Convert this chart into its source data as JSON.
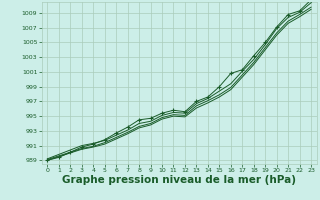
{
  "bg_color": "#cceee8",
  "grid_color": "#aaccbb",
  "line_color": "#1a5c2a",
  "xlabel": "Graphe pression niveau de la mer (hPa)",
  "xlabel_fontsize": 7.5,
  "xlim": [
    -0.5,
    23.5
  ],
  "ylim": [
    988.5,
    1010.5
  ],
  "yticks": [
    989,
    991,
    993,
    995,
    997,
    999,
    1001,
    1003,
    1005,
    1007,
    1009
  ],
  "xticks": [
    0,
    1,
    2,
    3,
    4,
    5,
    6,
    7,
    8,
    9,
    10,
    11,
    12,
    13,
    14,
    15,
    16,
    17,
    18,
    19,
    20,
    21,
    22,
    23
  ],
  "series1": {
    "x": [
      0,
      1,
      2,
      3,
      4,
      5,
      6,
      7,
      8,
      9,
      10,
      11,
      12,
      13,
      14,
      15,
      16,
      17,
      18,
      19,
      20,
      21,
      22,
      23
    ],
    "y": [
      989.2,
      989.8,
      990.4,
      991.0,
      991.3,
      991.7,
      992.4,
      993.1,
      994.0,
      994.3,
      995.1,
      995.5,
      995.4,
      996.7,
      997.4,
      998.4,
      999.4,
      1001.1,
      1002.7,
      1004.7,
      1006.9,
      1008.4,
      1009.1,
      1010.4
    ]
  },
  "series2": {
    "x": [
      0,
      1,
      2,
      3,
      4,
      5,
      6,
      7,
      8,
      9,
      10,
      11,
      12,
      13,
      14,
      15,
      16,
      17,
      18,
      19,
      20,
      21,
      22,
      23
    ],
    "y": [
      989.1,
      989.6,
      990.1,
      990.6,
      990.9,
      991.4,
      992.1,
      992.8,
      993.6,
      994.0,
      994.8,
      995.2,
      995.1,
      996.4,
      997.1,
      997.9,
      998.9,
      1000.6,
      1002.3,
      1004.3,
      1006.3,
      1007.9,
      1008.8,
      1009.8
    ]
  },
  "series3": {
    "x": [
      0,
      1,
      2,
      3,
      4,
      5,
      6,
      7,
      8,
      9,
      10,
      11,
      12,
      13,
      14,
      15,
      16,
      17,
      18,
      19,
      20,
      21,
      22,
      23
    ],
    "y": [
      989.0,
      989.5,
      990.0,
      990.5,
      990.8,
      991.2,
      991.9,
      992.6,
      993.4,
      993.8,
      994.6,
      995.0,
      994.9,
      996.1,
      996.8,
      997.6,
      998.6,
      1000.3,
      1002.0,
      1004.0,
      1006.0,
      1007.6,
      1008.5,
      1009.5
    ]
  },
  "series4_marked": {
    "x": [
      0,
      1,
      2,
      3,
      4,
      5,
      6,
      7,
      8,
      9,
      10,
      11,
      12,
      13,
      14,
      15,
      16,
      17,
      18,
      19,
      20,
      21,
      22,
      23
    ],
    "y": [
      989.0,
      989.4,
      990.1,
      990.8,
      991.2,
      991.8,
      992.7,
      993.5,
      994.5,
      994.7,
      995.4,
      995.8,
      995.6,
      997.0,
      997.6,
      999.0,
      1000.8,
      1001.3,
      1003.2,
      1005.0,
      1007.1,
      1008.8,
      1009.3,
      1010.8
    ]
  }
}
